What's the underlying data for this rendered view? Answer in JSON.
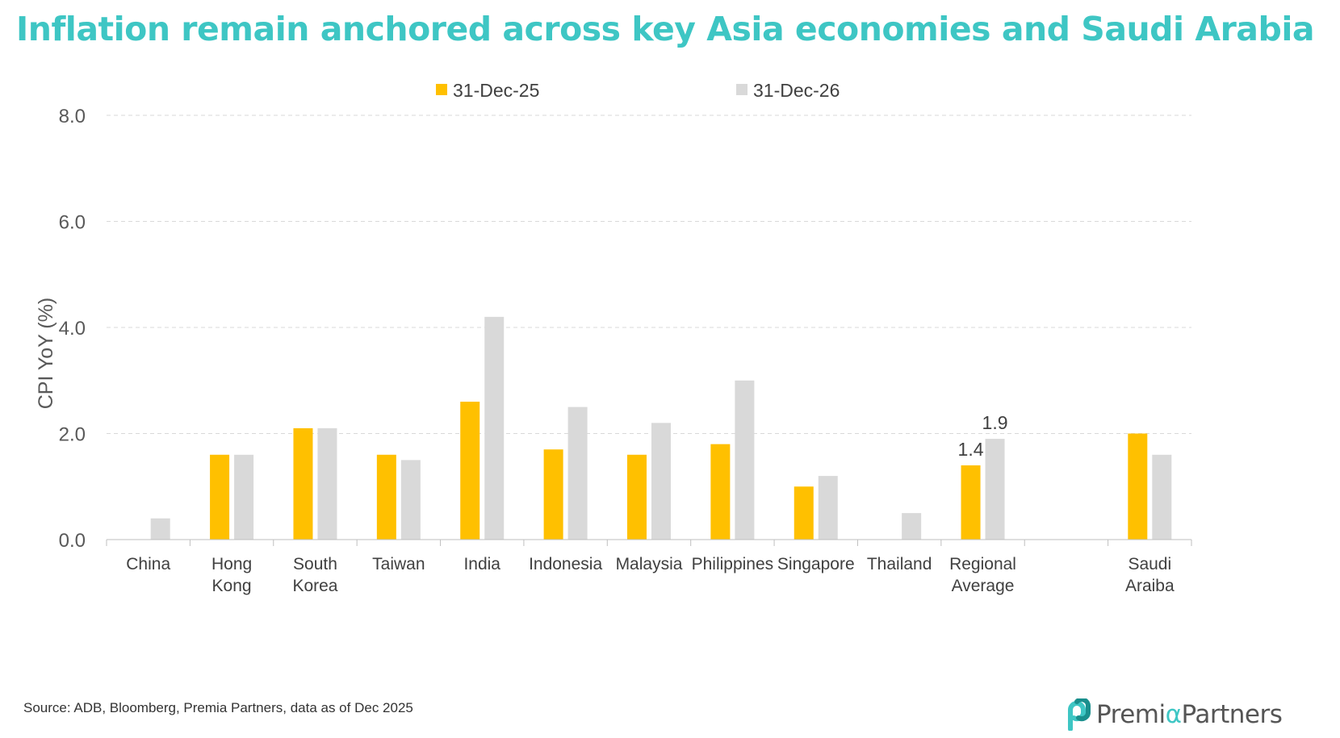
{
  "title": "Inflation remain anchored across key Asia economies and Saudi Arabia",
  "source": "Source: ADB, Bloomberg, Premia Partners, data as of Dec 2025",
  "logo": {
    "part1": "Premi",
    "alpha": "α",
    "part2": "Partners"
  },
  "colors": {
    "series1": "#ffc000",
    "series2": "#d9d9d9",
    "title": "#3ec6c4",
    "grid": "#d9d9d9"
  },
  "chart_data": {
    "type": "bar",
    "ylabel": "CPI YoY (%)",
    "xlabel": "",
    "ylim": [
      0,
      8
    ],
    "yticks": [
      "0.0",
      "2.0",
      "4.0",
      "6.0",
      "8.0"
    ],
    "legend_position": "top-center",
    "grid": true,
    "categories": [
      [
        "China"
      ],
      [
        "Hong",
        "Kong"
      ],
      [
        "South",
        "Korea"
      ],
      [
        "Taiwan"
      ],
      [
        "India"
      ],
      [
        "Indonesia"
      ],
      [
        "Malaysia"
      ],
      [
        "Philippines"
      ],
      [
        "Singapore"
      ],
      [
        "Thailand"
      ],
      [
        "Regional",
        "Average"
      ],
      [
        ""
      ],
      [
        "Saudi",
        "Araiba"
      ]
    ],
    "series": [
      {
        "name": "31-Dec-25",
        "color": "#ffc000",
        "values": [
          null,
          1.6,
          2.1,
          1.6,
          2.6,
          1.7,
          1.6,
          1.8,
          1.0,
          null,
          1.4,
          null,
          2.0
        ]
      },
      {
        "name": "31-Dec-26",
        "color": "#d9d9d9",
        "values": [
          0.4,
          1.6,
          2.1,
          1.5,
          4.2,
          2.5,
          2.2,
          3.0,
          1.2,
          0.5,
          1.9,
          null,
          1.6
        ]
      }
    ],
    "data_labels": [
      {
        "series": 0,
        "index": 10,
        "text": "1.4"
      },
      {
        "series": 1,
        "index": 10,
        "text": "1.9"
      }
    ]
  }
}
